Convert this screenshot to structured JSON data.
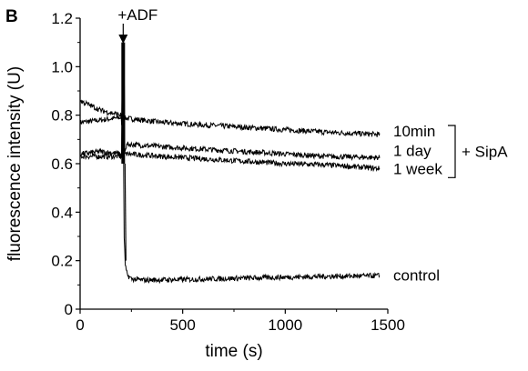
{
  "chart_data": {
    "type": "line",
    "panel_label": "B",
    "xlabel": "time (s)",
    "ylabel": "fluorescence intensity (U)",
    "xlim": [
      0,
      1500
    ],
    "ylim": [
      0,
      1.2
    ],
    "xticks": [
      0,
      500,
      1000,
      1500
    ],
    "yticks": [
      0,
      0.2,
      0.4,
      0.6,
      0.8,
      1.0,
      1.2
    ],
    "ytick_labels": [
      "0",
      "0.2",
      "0.4",
      "0.6",
      "0.8",
      "1.0",
      "1.2"
    ],
    "annotation": {
      "text": "+ADF",
      "x": 210
    },
    "group_label": "+ SipA",
    "series": [
      {
        "name": "10min",
        "x": [
          0,
          100,
          200,
          210,
          400,
          600,
          800,
          1000,
          1200,
          1460
        ],
        "y": [
          0.77,
          0.78,
          0.79,
          0.79,
          0.77,
          0.76,
          0.75,
          0.74,
          0.73,
          0.72
        ]
      },
      {
        "name": "1 day",
        "x": [
          0,
          100,
          200,
          210,
          230,
          400,
          600,
          800,
          1000,
          1200,
          1460
        ],
        "y": [
          0.63,
          0.63,
          0.63,
          1.1,
          0.68,
          0.67,
          0.66,
          0.65,
          0.64,
          0.63,
          0.625
        ]
      },
      {
        "name": "1 week",
        "x": [
          0,
          100,
          200,
          210,
          230,
          400,
          600,
          800,
          1000,
          1200,
          1460
        ],
        "y": [
          0.64,
          0.65,
          0.64,
          1.1,
          0.64,
          0.63,
          0.62,
          0.61,
          0.6,
          0.595,
          0.58
        ]
      },
      {
        "name": "control",
        "x": [
          0,
          50,
          100,
          150,
          200,
          210,
          212,
          215,
          220,
          230,
          250,
          300,
          500,
          800,
          1000,
          1200,
          1460
        ],
        "y": [
          0.86,
          0.84,
          0.82,
          0.81,
          0.8,
          1.05,
          0.6,
          0.3,
          0.18,
          0.14,
          0.125,
          0.12,
          0.122,
          0.128,
          0.132,
          0.135,
          0.138
        ]
      }
    ]
  }
}
